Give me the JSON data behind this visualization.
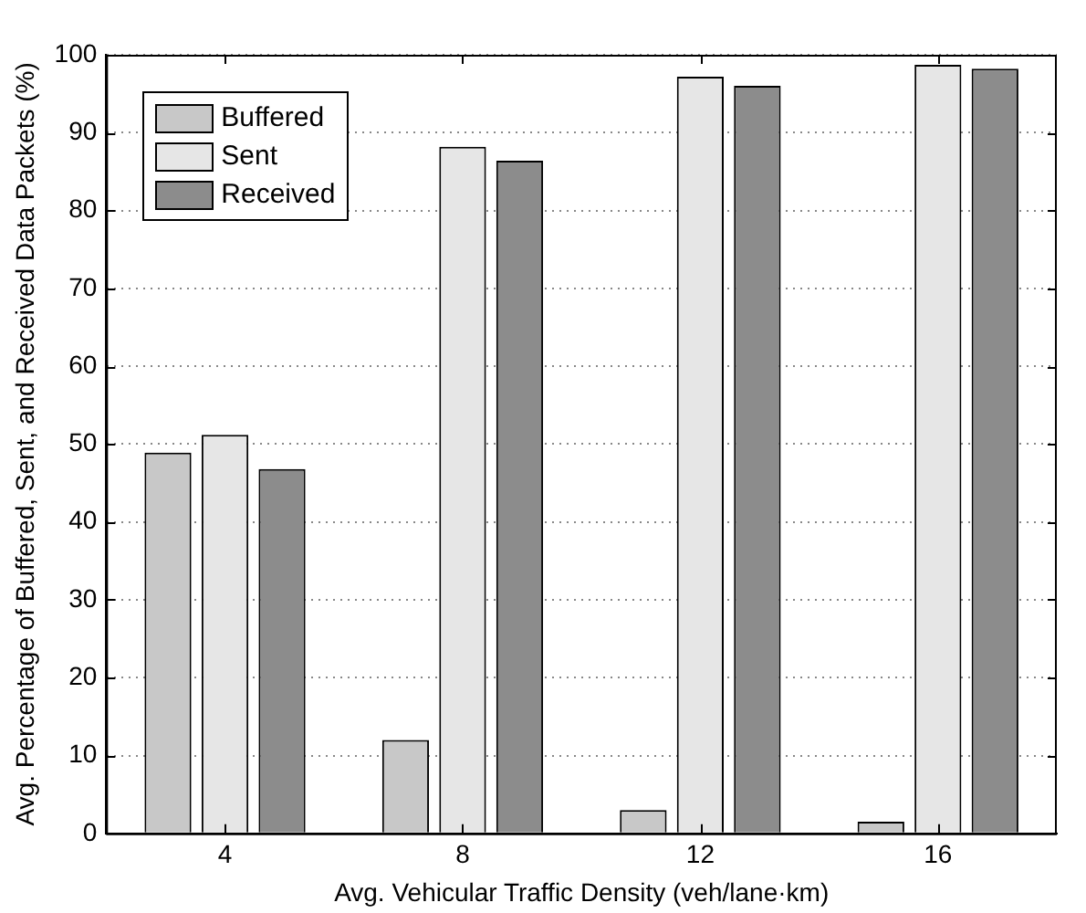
{
  "chart_data": {
    "type": "bar",
    "xlabel": "Avg. Vehicular Traffic Density (veh/lane·km)",
    "ylabel": "Avg. Percentage of Buffered, Sent, and Received Data Packets (%)",
    "categories": [
      "4",
      "8",
      "12",
      "16"
    ],
    "series": [
      {
        "name": "Buffered",
        "color": "#c8c8c8",
        "values": [
          48.9,
          12,
          3,
          1.5
        ]
      },
      {
        "name": "Sent",
        "color": "#e6e6e6",
        "values": [
          51.2,
          88.2,
          97.2,
          98.7
        ]
      },
      {
        "name": "Received",
        "color": "#8c8c8c",
        "values": [
          46.8,
          86.4,
          96,
          98.2
        ]
      }
    ],
    "ylim": [
      0,
      100
    ],
    "yticks": [
      0,
      10,
      20,
      30,
      40,
      50,
      60,
      70,
      80,
      90,
      100
    ],
    "grid": "y",
    "legend": "top left"
  }
}
